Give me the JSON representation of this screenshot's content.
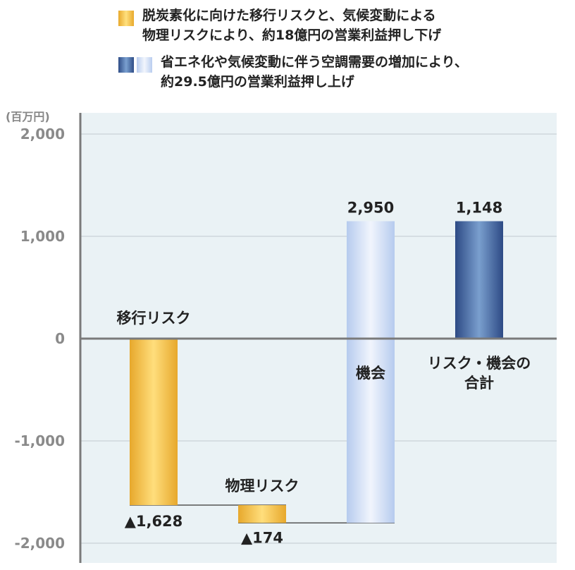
{
  "legend": [
    {
      "text": "脱炭素化に向けた移行リスクと、気候変動による\n物理リスクにより、約18億円の営業利益押し下げ",
      "swatch_colors": [
        "#f0b93a"
      ]
    },
    {
      "text": "省エネ化や気候変動に伴う空調需要の増加により、\n約29.5億円の営業利益押し上げ",
      "swatch_colors": [
        "#3f5f98",
        "#c9d8f2"
      ]
    }
  ],
  "unit_label": "(百万円)",
  "chart_data": {
    "type": "bar",
    "subtype": "waterfall",
    "y_ticks": [
      "2,000",
      "1,000",
      "0",
      "-1,000",
      "-2,000"
    ],
    "ylim": [
      -2000,
      2000
    ],
    "grid": true,
    "bars": [
      {
        "label": "移行リスク",
        "start": 0,
        "end": -1628,
        "value_label": "▲1,628",
        "color": "gold"
      },
      {
        "label": "物理リスク",
        "start": -1628,
        "end": -1802,
        "value_label": "▲174",
        "color": "gold"
      },
      {
        "label": "機会",
        "start": -1802,
        "end": 1148,
        "value_label": "2,950",
        "color": "lightblue"
      },
      {
        "label": "リスク・機会の\n合計",
        "start": 0,
        "end": 1148,
        "value_label": "1,148",
        "color": "navy"
      }
    ],
    "colors": {
      "plot_bg": "#eaf2f5",
      "grid": "#d0d8dc",
      "axis": "#7a7a7a",
      "tick_text": "#8a8a8a"
    }
  }
}
